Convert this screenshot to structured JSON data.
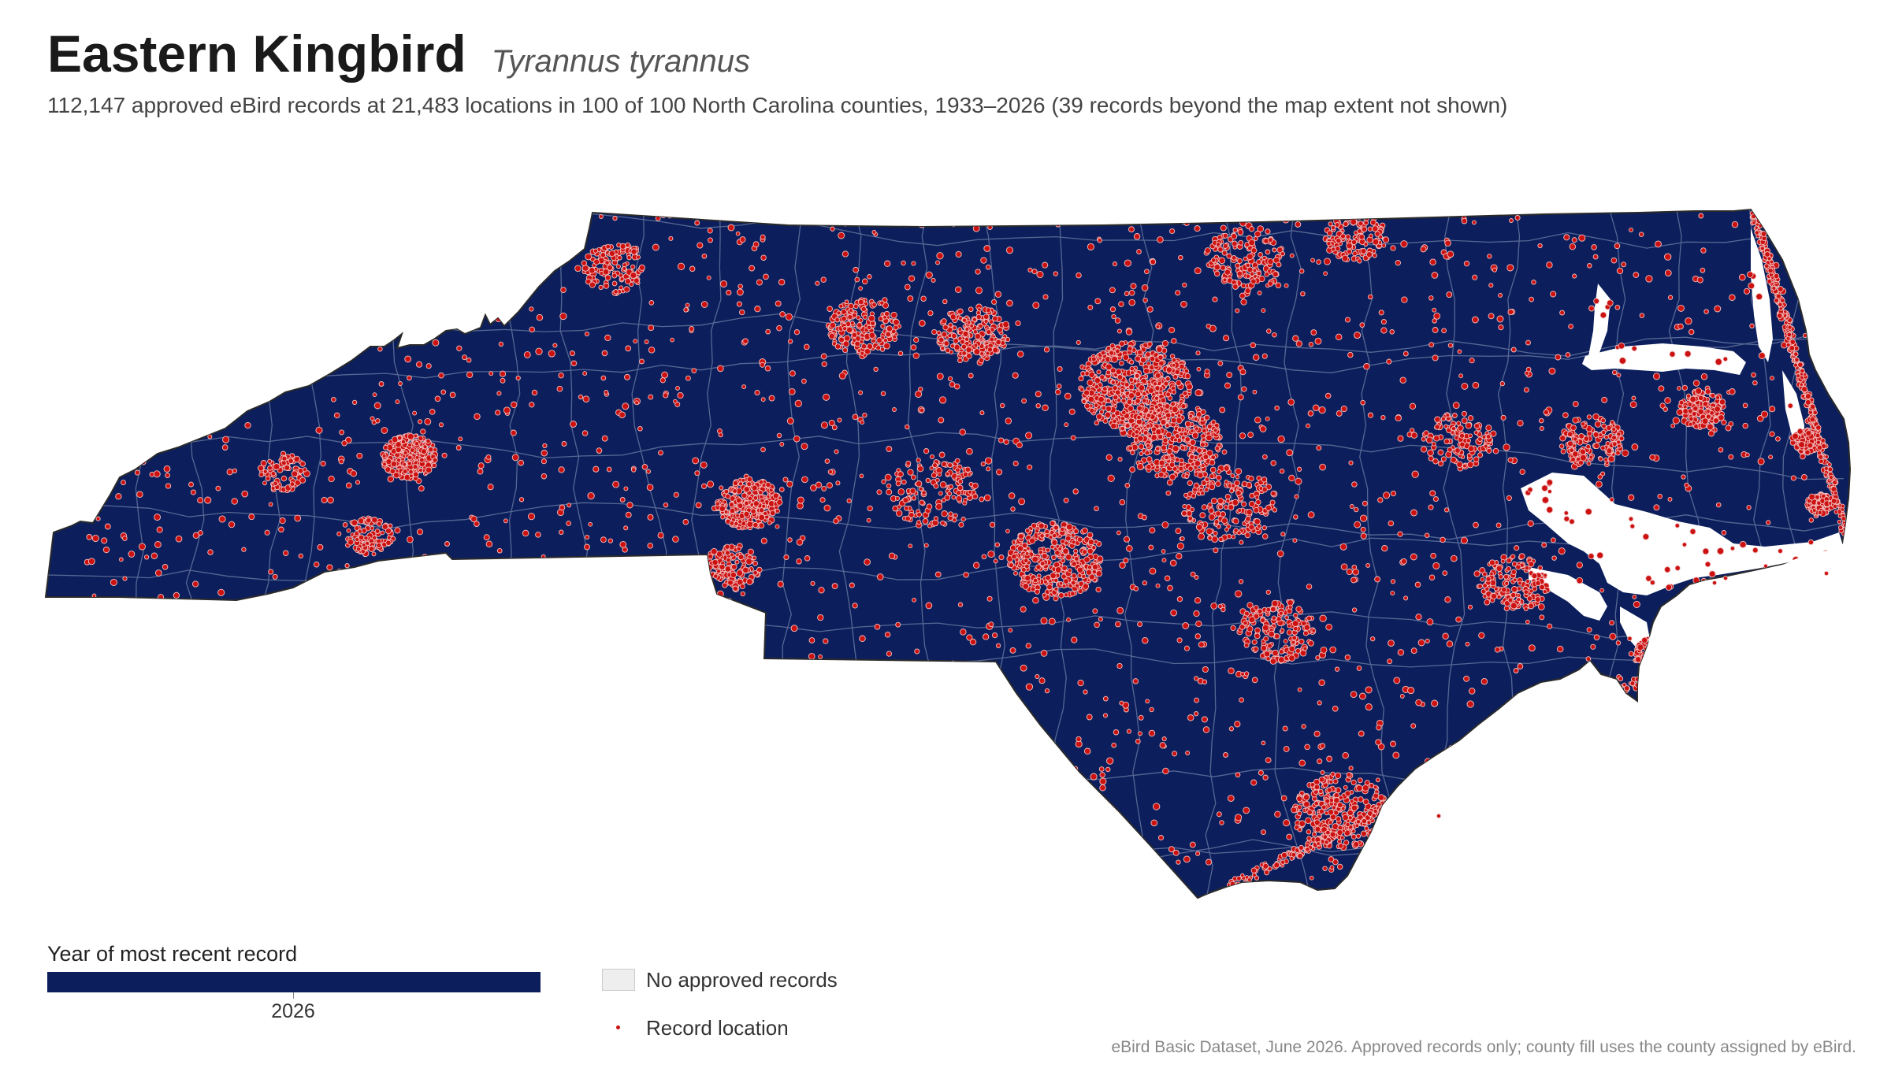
{
  "header": {
    "title": "Eastern Kingbird",
    "scientific_name": "Tyrannus tyrannus",
    "subtitle": "112,147 approved eBird records at 21,483 locations in 100 of 100 North Carolina counties, 1933–2026 (39 records beyond the map extent not shown)"
  },
  "map": {
    "region": "North Carolina",
    "fill_color": "#0c1f5c",
    "county_border_color": "#6f7fa6",
    "point_color": "#cc1111",
    "point_outline_color": "#f2c0c0",
    "water_color": "#ffffff"
  },
  "legend": {
    "year_title": "Year of most recent record",
    "year_value": "2026",
    "year_color": "#0c1f5c",
    "no_records_label": "No approved records",
    "no_records_color": "#eeeeee",
    "record_location_label": "Record location"
  },
  "caption": "eBird Basic Dataset, June 2026. Approved records only; county fill uses the county assigned by eBird."
}
